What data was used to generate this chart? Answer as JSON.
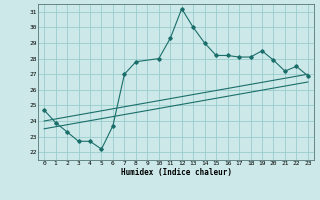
{
  "title": "",
  "xlabel": "Humidex (Indice chaleur)",
  "bg_color": "#cce8e8",
  "grid_color": "#99cccc",
  "line_color": "#1a6e6a",
  "xlim": [
    -0.5,
    23.5
  ],
  "ylim": [
    21.5,
    31.5
  ],
  "xticks": [
    0,
    1,
    2,
    3,
    4,
    5,
    6,
    7,
    8,
    9,
    10,
    11,
    12,
    13,
    14,
    15,
    16,
    17,
    18,
    19,
    20,
    21,
    22,
    23
  ],
  "yticks": [
    22,
    23,
    24,
    25,
    26,
    27,
    28,
    29,
    30,
    31
  ],
  "line1_x": [
    0,
    1,
    2,
    3,
    4,
    5,
    6,
    7,
    8,
    10,
    11,
    12,
    13,
    14,
    15,
    16,
    17,
    18,
    19,
    20,
    21,
    22,
    23
  ],
  "line1_y": [
    24.7,
    23.9,
    23.3,
    22.7,
    22.7,
    22.2,
    23.7,
    27.0,
    27.8,
    28.0,
    29.3,
    31.2,
    30.0,
    29.0,
    28.2,
    28.2,
    28.1,
    28.1,
    28.5,
    27.9,
    27.2,
    27.5,
    26.9
  ],
  "line2_x": [
    0,
    23
  ],
  "line2_y": [
    24.0,
    27.0
  ],
  "line3_x": [
    0,
    23
  ],
  "line3_y": [
    23.5,
    26.5
  ]
}
